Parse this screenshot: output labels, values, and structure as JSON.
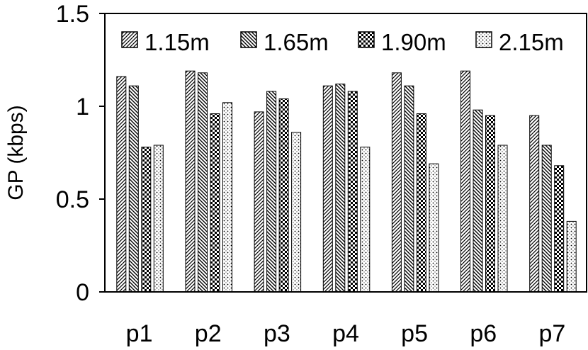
{
  "chart_data": {
    "type": "bar",
    "categories": [
      "p1",
      "p2",
      "p3",
      "p4",
      "p5",
      "p6",
      "p7"
    ],
    "series": [
      {
        "name": "1.15m",
        "pattern": "diag-dense",
        "values": [
          1.16,
          1.19,
          0.97,
          1.11,
          1.18,
          1.19,
          0.95
        ]
      },
      {
        "name": "1.65m",
        "pattern": "diag-back",
        "values": [
          1.11,
          1.18,
          1.08,
          1.12,
          1.11,
          0.98,
          0.79
        ]
      },
      {
        "name": "1.90m",
        "pattern": "checker",
        "values": [
          0.78,
          0.96,
          1.04,
          1.08,
          0.96,
          0.95,
          0.68
        ]
      },
      {
        "name": "2.15m",
        "pattern": "dots",
        "values": [
          0.79,
          1.02,
          0.86,
          0.78,
          0.69,
          0.79,
          0.38
        ]
      }
    ],
    "title": "",
    "xlabel": "",
    "ylabel": "GP (kbps)",
    "ylim": [
      0,
      1.5
    ],
    "yticks": [
      "0",
      "0.5",
      "1",
      "1.5"
    ],
    "legend": "top",
    "grid": false
  }
}
